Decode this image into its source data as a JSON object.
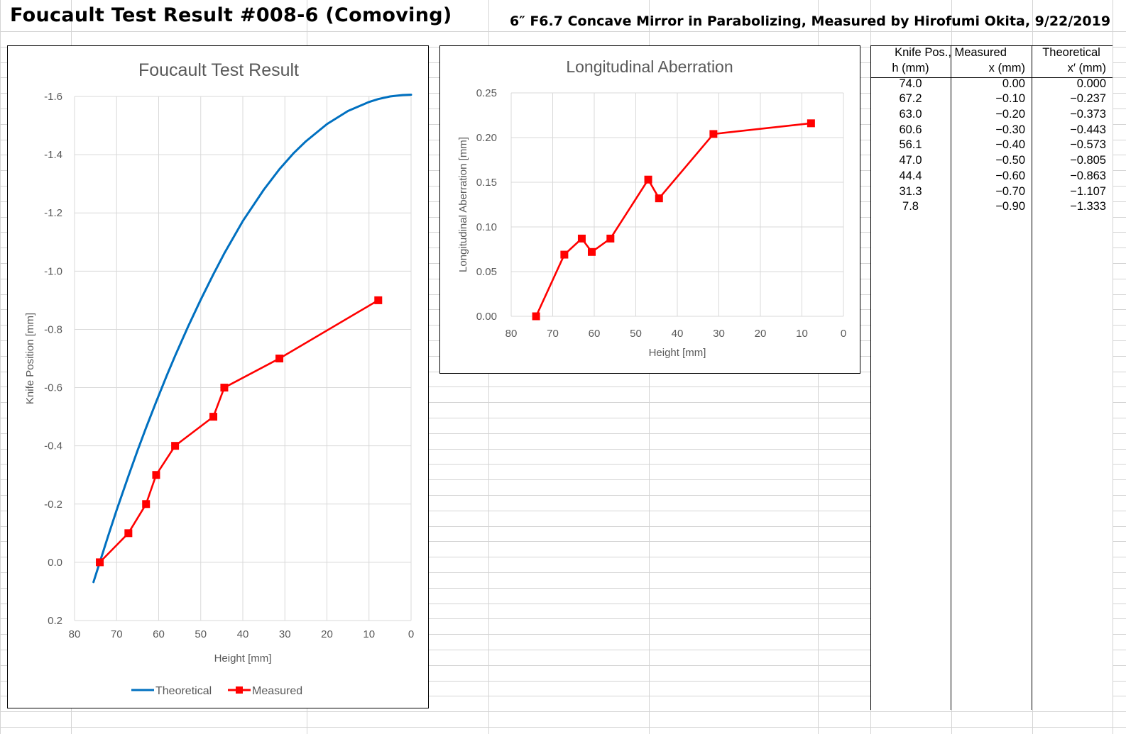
{
  "header": {
    "title": "Foucault Test Result #008-6 (Comoving)",
    "subtitle": "6″ F6.7 Concave Mirror in Parabolizing, Measured by Hirofumi Okita, 9/22/2019"
  },
  "chart_data": [
    {
      "type": "line",
      "title": "Foucault Test Result",
      "xlabel": "Height [mm]",
      "ylabel": "Knife Position [mm]",
      "xlim": [
        80,
        0
      ],
      "ylim": [
        0.2,
        -1.6
      ],
      "x_ticks": [
        "80",
        "70",
        "60",
        "50",
        "40",
        "30",
        "20",
        "10",
        "0"
      ],
      "y_ticks": [
        "-1.6",
        "-1.4",
        "-1.2",
        "-1.0",
        "-0.8",
        "-0.6",
        "-0.4",
        "-0.2",
        "0.0",
        "0.2"
      ],
      "grid": true,
      "legend_position": "bottom",
      "series": [
        {
          "name": "Theoretical",
          "color": "#0070C0",
          "marker": "none",
          "x": [
            75.5,
            74,
            72,
            70,
            67.2,
            65,
            63,
            60.6,
            58,
            56.1,
            53,
            50,
            47,
            44.4,
            40,
            35,
            31.3,
            28,
            25,
            20,
            15,
            10,
            7.8,
            5,
            2,
            0
          ],
          "y": [
            0.068,
            0.0,
            -0.091,
            -0.179,
            -0.296,
            -0.385,
            -0.462,
            -0.551,
            -0.644,
            -0.709,
            -0.81,
            -0.902,
            -0.989,
            -1.061,
            -1.172,
            -1.28,
            -1.35,
            -1.404,
            -1.446,
            -1.505,
            -1.55,
            -1.581,
            -1.591,
            -1.6,
            -1.605,
            -1.606
          ]
        },
        {
          "name": "Measured",
          "color": "#FF0000",
          "marker": "square",
          "x": [
            74.0,
            67.2,
            63.0,
            60.6,
            56.1,
            47.0,
            44.4,
            31.3,
            7.8
          ],
          "y": [
            0.0,
            -0.1,
            -0.2,
            -0.3,
            -0.4,
            -0.5,
            -0.6,
            -0.7,
            -0.9
          ]
        }
      ]
    },
    {
      "type": "line",
      "title": "Longitudinal Aberration",
      "xlabel": "Height [mm]",
      "ylabel": "Longitudinal Aberration [mm]",
      "xlim": [
        80,
        0
      ],
      "ylim": [
        0,
        0.25
      ],
      "x_ticks": [
        "80",
        "70",
        "60",
        "50",
        "40",
        "30",
        "20",
        "10",
        "0"
      ],
      "y_ticks": [
        "0.00",
        "0.05",
        "0.10",
        "0.15",
        "0.20",
        "0.25"
      ],
      "grid": true,
      "series": [
        {
          "color": "#FF0000",
          "marker": "square",
          "x": [
            74.0,
            67.2,
            63.0,
            60.6,
            56.1,
            47.0,
            44.4,
            31.3,
            7.8
          ],
          "y": [
            0.0,
            0.069,
            0.087,
            0.072,
            0.087,
            0.153,
            0.132,
            0.204,
            0.216
          ]
        }
      ]
    }
  ],
  "table": {
    "group_headers": [
      "Knife Pos., Measured",
      "Theoretical"
    ],
    "columns": [
      "h (mm)",
      "x (mm)",
      "x′ (mm)"
    ],
    "rows": [
      [
        "74.0",
        "0.00",
        "0.000"
      ],
      [
        "67.2",
        "−0.10",
        "−0.237"
      ],
      [
        "63.0",
        "−0.20",
        "−0.373"
      ],
      [
        "60.6",
        "−0.30",
        "−0.443"
      ],
      [
        "56.1",
        "−0.40",
        "−0.573"
      ],
      [
        "47.0",
        "−0.50",
        "−0.805"
      ],
      [
        "44.4",
        "−0.60",
        "−0.863"
      ],
      [
        "31.3",
        "−0.70",
        "−1.107"
      ],
      [
        "7.8",
        "−0.90",
        "−1.333"
      ]
    ]
  }
}
